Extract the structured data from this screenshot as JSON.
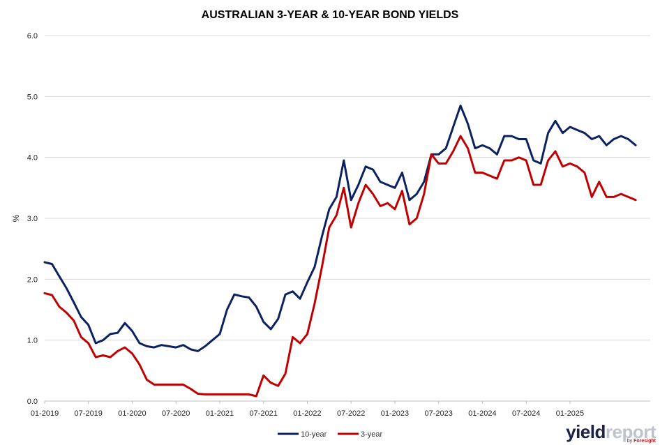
{
  "chart_data": {
    "type": "line",
    "title": "AUSTRALIAN 3-YEAR & 10-YEAR BOND YIELDS",
    "xlabel": "",
    "ylabel": "%",
    "ylim": [
      0,
      6
    ],
    "yticks": [
      "0.0",
      "1.0",
      "2.0",
      "3.0",
      "4.0",
      "5.0",
      "6.0"
    ],
    "xlim": [
      "2019-01",
      "2025-12"
    ],
    "xticks": [
      "01-2019",
      "07-2019",
      "01-2020",
      "07-2020",
      "01-2021",
      "07-2021",
      "01-2022",
      "07-2022",
      "01-2023",
      "07-2023",
      "01-2024",
      "07-2024",
      "01-2025"
    ],
    "grid": "horizontal",
    "legend": "bottom-center",
    "series": [
      {
        "name": "10-year",
        "color": "#0b2260",
        "points": [
          [
            "2019-01",
            2.28
          ],
          [
            "2019-02",
            2.25
          ],
          [
            "2019-03",
            2.05
          ],
          [
            "2019-04",
            1.85
          ],
          [
            "2019-05",
            1.62
          ],
          [
            "2019-06",
            1.38
          ],
          [
            "2019-07",
            1.25
          ],
          [
            "2019-08",
            0.95
          ],
          [
            "2019-09",
            1.0
          ],
          [
            "2019-10",
            1.1
          ],
          [
            "2019-11",
            1.12
          ],
          [
            "2019-12",
            1.28
          ],
          [
            "2020-01",
            1.15
          ],
          [
            "2020-02",
            0.95
          ],
          [
            "2020-03",
            0.9
          ],
          [
            "2020-04",
            0.88
          ],
          [
            "2020-05",
            0.92
          ],
          [
            "2020-06",
            0.9
          ],
          [
            "2020-07",
            0.88
          ],
          [
            "2020-08",
            0.92
          ],
          [
            "2020-09",
            0.85
          ],
          [
            "2020-10",
            0.82
          ],
          [
            "2020-11",
            0.9
          ],
          [
            "2020-12",
            1.0
          ],
          [
            "2021-01",
            1.1
          ],
          [
            "2021-02",
            1.5
          ],
          [
            "2021-03",
            1.75
          ],
          [
            "2021-04",
            1.72
          ],
          [
            "2021-05",
            1.7
          ],
          [
            "2021-06",
            1.55
          ],
          [
            "2021-07",
            1.3
          ],
          [
            "2021-08",
            1.18
          ],
          [
            "2021-09",
            1.35
          ],
          [
            "2021-10",
            1.75
          ],
          [
            "2021-11",
            1.8
          ],
          [
            "2021-12",
            1.68
          ],
          [
            "2022-01",
            1.95
          ],
          [
            "2022-02",
            2.2
          ],
          [
            "2022-03",
            2.7
          ],
          [
            "2022-04",
            3.15
          ],
          [
            "2022-05",
            3.35
          ],
          [
            "2022-06",
            3.95
          ],
          [
            "2022-07",
            3.3
          ],
          [
            "2022-08",
            3.55
          ],
          [
            "2022-09",
            3.85
          ],
          [
            "2022-10",
            3.8
          ],
          [
            "2022-11",
            3.6
          ],
          [
            "2022-12",
            3.55
          ],
          [
            "2023-01",
            3.5
          ],
          [
            "2023-02",
            3.75
          ],
          [
            "2023-03",
            3.3
          ],
          [
            "2023-04",
            3.4
          ],
          [
            "2023-05",
            3.6
          ],
          [
            "2023-06",
            4.05
          ],
          [
            "2023-07",
            4.05
          ],
          [
            "2023-08",
            4.15
          ],
          [
            "2023-09",
            4.5
          ],
          [
            "2023-10",
            4.85
          ],
          [
            "2023-11",
            4.55
          ],
          [
            "2023-12",
            4.15
          ],
          [
            "2024-01",
            4.2
          ],
          [
            "2024-02",
            4.15
          ],
          [
            "2024-03",
            4.05
          ],
          [
            "2024-04",
            4.35
          ],
          [
            "2024-05",
            4.35
          ],
          [
            "2024-06",
            4.3
          ],
          [
            "2024-07",
            4.3
          ],
          [
            "2024-08",
            3.95
          ],
          [
            "2024-09",
            3.9
          ],
          [
            "2024-10",
            4.4
          ],
          [
            "2024-11",
            4.6
          ],
          [
            "2024-12",
            4.4
          ],
          [
            "2025-01",
            4.5
          ],
          [
            "2025-02",
            4.45
          ],
          [
            "2025-03",
            4.4
          ],
          [
            "2025-04",
            4.3
          ],
          [
            "2025-05",
            4.35
          ],
          [
            "2025-06",
            4.2
          ],
          [
            "2025-07",
            4.3
          ],
          [
            "2025-08",
            4.35
          ],
          [
            "2025-09",
            4.3
          ],
          [
            "2025-10",
            4.2
          ]
        ]
      },
      {
        "name": "3-year",
        "color": "#c00000",
        "points": [
          [
            "2019-01",
            1.77
          ],
          [
            "2019-02",
            1.74
          ],
          [
            "2019-03",
            1.55
          ],
          [
            "2019-04",
            1.45
          ],
          [
            "2019-05",
            1.32
          ],
          [
            "2019-06",
            1.05
          ],
          [
            "2019-07",
            0.95
          ],
          [
            "2019-08",
            0.72
          ],
          [
            "2019-09",
            0.75
          ],
          [
            "2019-10",
            0.72
          ],
          [
            "2019-11",
            0.82
          ],
          [
            "2019-12",
            0.88
          ],
          [
            "2020-01",
            0.78
          ],
          [
            "2020-02",
            0.6
          ],
          [
            "2020-03",
            0.35
          ],
          [
            "2020-04",
            0.27
          ],
          [
            "2020-05",
            0.27
          ],
          [
            "2020-06",
            0.27
          ],
          [
            "2020-07",
            0.27
          ],
          [
            "2020-08",
            0.27
          ],
          [
            "2020-09",
            0.2
          ],
          [
            "2020-10",
            0.12
          ],
          [
            "2020-11",
            0.11
          ],
          [
            "2020-12",
            0.11
          ],
          [
            "2021-01",
            0.11
          ],
          [
            "2021-02",
            0.11
          ],
          [
            "2021-03",
            0.11
          ],
          [
            "2021-04",
            0.11
          ],
          [
            "2021-05",
            0.11
          ],
          [
            "2021-06",
            0.08
          ],
          [
            "2021-07",
            0.42
          ],
          [
            "2021-08",
            0.3
          ],
          [
            "2021-09",
            0.25
          ],
          [
            "2021-10",
            0.45
          ],
          [
            "2021-11",
            1.05
          ],
          [
            "2021-12",
            0.95
          ],
          [
            "2022-01",
            1.1
          ],
          [
            "2022-02",
            1.6
          ],
          [
            "2022-03",
            2.2
          ],
          [
            "2022-04",
            2.85
          ],
          [
            "2022-05",
            3.05
          ],
          [
            "2022-06",
            3.5
          ],
          [
            "2022-07",
            2.85
          ],
          [
            "2022-08",
            3.25
          ],
          [
            "2022-09",
            3.55
          ],
          [
            "2022-10",
            3.4
          ],
          [
            "2022-11",
            3.2
          ],
          [
            "2022-12",
            3.25
          ],
          [
            "2023-01",
            3.15
          ],
          [
            "2023-02",
            3.45
          ],
          [
            "2023-03",
            2.9
          ],
          [
            "2023-04",
            3.0
          ],
          [
            "2023-05",
            3.4
          ],
          [
            "2023-06",
            4.05
          ],
          [
            "2023-07",
            3.9
          ],
          [
            "2023-08",
            3.9
          ],
          [
            "2023-09",
            4.1
          ],
          [
            "2023-10",
            4.35
          ],
          [
            "2023-11",
            4.15
          ],
          [
            "2023-12",
            3.75
          ],
          [
            "2024-01",
            3.75
          ],
          [
            "2024-02",
            3.7
          ],
          [
            "2024-03",
            3.65
          ],
          [
            "2024-04",
            3.95
          ],
          [
            "2024-05",
            3.95
          ],
          [
            "2024-06",
            4.0
          ],
          [
            "2024-07",
            3.95
          ],
          [
            "2024-08",
            3.55
          ],
          [
            "2024-09",
            3.55
          ],
          [
            "2024-10",
            3.95
          ],
          [
            "2024-11",
            4.1
          ],
          [
            "2024-12",
            3.85
          ],
          [
            "2025-01",
            3.9
          ],
          [
            "2025-02",
            3.85
          ],
          [
            "2025-03",
            3.75
          ],
          [
            "2025-04",
            3.35
          ],
          [
            "2025-05",
            3.6
          ],
          [
            "2025-06",
            3.35
          ],
          [
            "2025-07",
            3.35
          ],
          [
            "2025-08",
            3.4
          ],
          [
            "2025-09",
            3.35
          ],
          [
            "2025-10",
            3.3
          ]
        ]
      }
    ]
  },
  "branding": {
    "logo_part1": "yield",
    "logo_part2": "report",
    "logo_sub_prefix": "by ",
    "logo_sub_brand": "Foresight",
    "logo_colors": {
      "yield": "#1b2244",
      "report": "#bfc3cc",
      "accent": "#c9151e"
    }
  }
}
